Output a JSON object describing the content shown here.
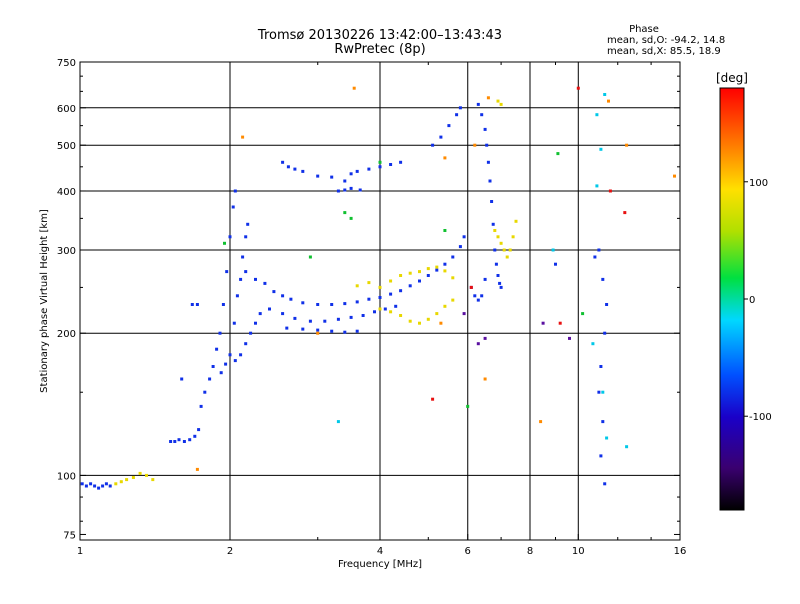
{
  "chart_data": {
    "type": "scatter",
    "title": "Tromsø 20130226 13:42:00–13:43:43",
    "subtitle": "RwPretec (8p)",
    "xlabel": "Frequency [MHz]",
    "ylabel": "Stationary phase Virtual Height [km]",
    "x_scale": "log",
    "y_scale": "log",
    "xlim": [
      1,
      16
    ],
    "ylim": [
      73,
      750
    ],
    "x_ticks": [
      1,
      2,
      4,
      6,
      8,
      10,
      16
    ],
    "y_ticks": [
      75,
      100,
      200,
      300,
      400,
      500,
      600,
      750
    ],
    "grid_x": [
      2,
      4,
      6,
      8,
      10
    ],
    "grid_y": [
      100,
      200,
      300,
      400,
      500,
      600
    ],
    "grid": true,
    "phase_info": {
      "heading": "Phase",
      "o_line": "mean, sd,O: -94.2, 14.8",
      "x_line": "mean, sd,X: 85.5, 18.9"
    },
    "colorbar": {
      "unit": "[deg]",
      "min": -180,
      "max": 180,
      "ticks": [
        100,
        0,
        -100
      ],
      "colormap": "rainbow (black-purple-blue-cyan-green-yellow-orange-red)"
    },
    "series": [
      {
        "color_code": "blue",
        "points": [
          [
            1.01,
            96
          ],
          [
            1.03,
            95
          ],
          [
            1.05,
            96
          ],
          [
            1.07,
            95
          ],
          [
            1.09,
            94
          ],
          [
            1.11,
            95
          ],
          [
            1.13,
            96
          ],
          [
            1.15,
            95
          ],
          [
            1.52,
            118
          ],
          [
            1.55,
            118
          ],
          [
            1.58,
            119
          ],
          [
            1.62,
            118
          ],
          [
            1.66,
            119
          ],
          [
            1.7,
            121
          ],
          [
            1.73,
            125
          ],
          [
            1.6,
            160
          ],
          [
            1.68,
            230
          ],
          [
            1.75,
            140
          ],
          [
            1.78,
            150
          ],
          [
            1.82,
            160
          ],
          [
            1.85,
            170
          ],
          [
            1.88,
            185
          ],
          [
            1.91,
            200
          ],
          [
            1.94,
            230
          ],
          [
            1.97,
            270
          ],
          [
            2.0,
            320
          ],
          [
            2.03,
            370
          ],
          [
            2.05,
            400
          ],
          [
            1.92,
            165
          ],
          [
            1.96,
            172
          ],
          [
            2.0,
            180
          ],
          [
            2.04,
            210
          ],
          [
            2.07,
            240
          ],
          [
            2.1,
            260
          ],
          [
            2.12,
            290
          ],
          [
            2.15,
            320
          ],
          [
            2.17,
            340
          ],
          [
            2.05,
            175
          ],
          [
            2.1,
            180
          ],
          [
            2.15,
            190
          ],
          [
            2.2,
            200
          ],
          [
            2.25,
            210
          ],
          [
            2.3,
            220
          ],
          [
            2.15,
            270
          ],
          [
            2.25,
            260
          ],
          [
            2.35,
            255
          ],
          [
            2.45,
            245
          ],
          [
            2.55,
            240
          ],
          [
            2.65,
            236
          ],
          [
            2.8,
            232
          ],
          [
            3.0,
            230
          ],
          [
            3.2,
            230
          ],
          [
            3.4,
            231
          ],
          [
            3.6,
            233
          ],
          [
            3.8,
            236
          ],
          [
            4.0,
            238
          ],
          [
            4.2,
            242
          ],
          [
            4.4,
            246
          ],
          [
            4.6,
            252
          ],
          [
            4.8,
            258
          ],
          [
            5.0,
            265
          ],
          [
            5.2,
            272
          ],
          [
            5.4,
            280
          ],
          [
            5.6,
            290
          ],
          [
            5.8,
            305
          ],
          [
            5.9,
            320
          ],
          [
            2.4,
            225
          ],
          [
            2.55,
            220
          ],
          [
            2.7,
            215
          ],
          [
            2.9,
            212
          ],
          [
            3.1,
            212
          ],
          [
            3.3,
            214
          ],
          [
            3.5,
            216
          ],
          [
            3.7,
            218
          ],
          [
            3.9,
            222
          ],
          [
            4.1,
            225
          ],
          [
            4.3,
            228
          ],
          [
            2.6,
            205
          ],
          [
            2.8,
            204
          ],
          [
            3.0,
            203
          ],
          [
            3.2,
            202
          ],
          [
            3.4,
            201
          ],
          [
            3.6,
            202
          ],
          [
            2.55,
            460
          ],
          [
            2.62,
            450
          ],
          [
            2.7,
            445
          ],
          [
            2.8,
            440
          ],
          [
            3.0,
            430
          ],
          [
            3.2,
            428
          ],
          [
            3.4,
            420
          ],
          [
            3.5,
            435
          ],
          [
            3.6,
            440
          ],
          [
            3.8,
            445
          ],
          [
            4.0,
            450
          ],
          [
            4.2,
            455
          ],
          [
            4.4,
            460
          ],
          [
            3.3,
            400
          ],
          [
            3.4,
            402
          ],
          [
            3.5,
            405
          ],
          [
            3.65,
            402
          ],
          [
            5.1,
            500
          ],
          [
            5.3,
            520
          ],
          [
            5.5,
            550
          ],
          [
            5.7,
            580
          ],
          [
            5.8,
            600
          ],
          [
            6.3,
            610
          ],
          [
            6.4,
            580
          ],
          [
            6.5,
            540
          ],
          [
            6.55,
            500
          ],
          [
            6.6,
            460
          ],
          [
            6.65,
            420
          ],
          [
            6.7,
            380
          ],
          [
            6.75,
            340
          ],
          [
            6.8,
            300
          ],
          [
            6.85,
            280
          ],
          [
            6.9,
            265
          ],
          [
            6.95,
            255
          ],
          [
            7.0,
            250
          ],
          [
            6.2,
            240
          ],
          [
            6.3,
            235
          ],
          [
            6.4,
            240
          ],
          [
            6.5,
            260
          ],
          [
            9.0,
            280
          ],
          [
            10.8,
            290
          ],
          [
            11.0,
            300
          ],
          [
            11.2,
            260
          ],
          [
            11.4,
            230
          ],
          [
            11.3,
            200
          ],
          [
            11.1,
            170
          ],
          [
            11.0,
            150
          ],
          [
            11.2,
            130
          ],
          [
            11.1,
            110
          ],
          [
            11.3,
            96
          ],
          [
            1.72,
            230
          ]
        ]
      },
      {
        "color_code": "yellow",
        "points": [
          [
            1.18,
            96
          ],
          [
            1.21,
            97
          ],
          [
            1.24,
            98
          ],
          [
            1.28,
            99
          ],
          [
            1.32,
            101
          ],
          [
            1.36,
            100
          ],
          [
            1.4,
            98
          ],
          [
            3.6,
            252
          ],
          [
            3.8,
            256
          ],
          [
            4.0,
            250
          ],
          [
            4.2,
            258
          ],
          [
            4.4,
            265
          ],
          [
            4.6,
            268
          ],
          [
            4.8,
            270
          ],
          [
            5.0,
            274
          ],
          [
            5.2,
            276
          ],
          [
            5.4,
            271
          ],
          [
            5.6,
            262
          ],
          [
            4.0,
            225
          ],
          [
            4.2,
            222
          ],
          [
            4.4,
            218
          ],
          [
            4.6,
            212
          ],
          [
            4.8,
            210
          ],
          [
            5.0,
            214
          ],
          [
            5.2,
            220
          ],
          [
            5.4,
            228
          ],
          [
            5.6,
            235
          ],
          [
            6.8,
            330
          ],
          [
            6.9,
            320
          ],
          [
            7.0,
            310
          ],
          [
            7.1,
            300
          ],
          [
            7.2,
            290
          ],
          [
            7.3,
            300
          ],
          [
            7.4,
            320
          ],
          [
            7.5,
            345
          ],
          [
            6.9,
            620
          ],
          [
            7.0,
            610
          ]
        ]
      },
      {
        "color_code": "orange",
        "points": [
          [
            2.12,
            520
          ],
          [
            3.55,
            660
          ],
          [
            5.4,
            470
          ],
          [
            6.2,
            500
          ],
          [
            6.6,
            630
          ],
          [
            8.4,
            130
          ],
          [
            11.5,
            620
          ],
          [
            12.5,
            500
          ],
          [
            15.6,
            430
          ],
          [
            1.72,
            103
          ],
          [
            6.5,
            160
          ],
          [
            5.3,
            210
          ],
          [
            3.0,
            200
          ]
        ]
      },
      {
        "color_code": "green",
        "points": [
          [
            2.9,
            290
          ],
          [
            4.0,
            460
          ],
          [
            3.5,
            350
          ],
          [
            9.1,
            480
          ],
          [
            10.2,
            220
          ],
          [
            1.95,
            310
          ],
          [
            5.4,
            330
          ],
          [
            6.0,
            140
          ],
          [
            3.4,
            360
          ]
        ]
      },
      {
        "color_code": "cyan",
        "points": [
          [
            3.3,
            130
          ],
          [
            10.9,
            580
          ],
          [
            11.3,
            640
          ],
          [
            11.1,
            490
          ],
          [
            10.9,
            410
          ],
          [
            10.7,
            190
          ],
          [
            11.2,
            150
          ],
          [
            11.4,
            120
          ],
          [
            12.5,
            115
          ],
          [
            8.9,
            300
          ]
        ]
      },
      {
        "color_code": "purple",
        "points": [
          [
            6.3,
            190
          ],
          [
            6.5,
            195
          ],
          [
            9.6,
            195
          ],
          [
            8.5,
            210
          ],
          [
            5.9,
            220
          ],
          [
            6.1,
            250
          ]
        ]
      },
      {
        "color_code": "red",
        "points": [
          [
            6.1,
            250
          ],
          [
            11.6,
            400
          ],
          [
            12.4,
            360
          ],
          [
            5.1,
            145
          ],
          [
            10.0,
            660
          ],
          [
            9.2,
            210
          ]
        ]
      }
    ]
  }
}
